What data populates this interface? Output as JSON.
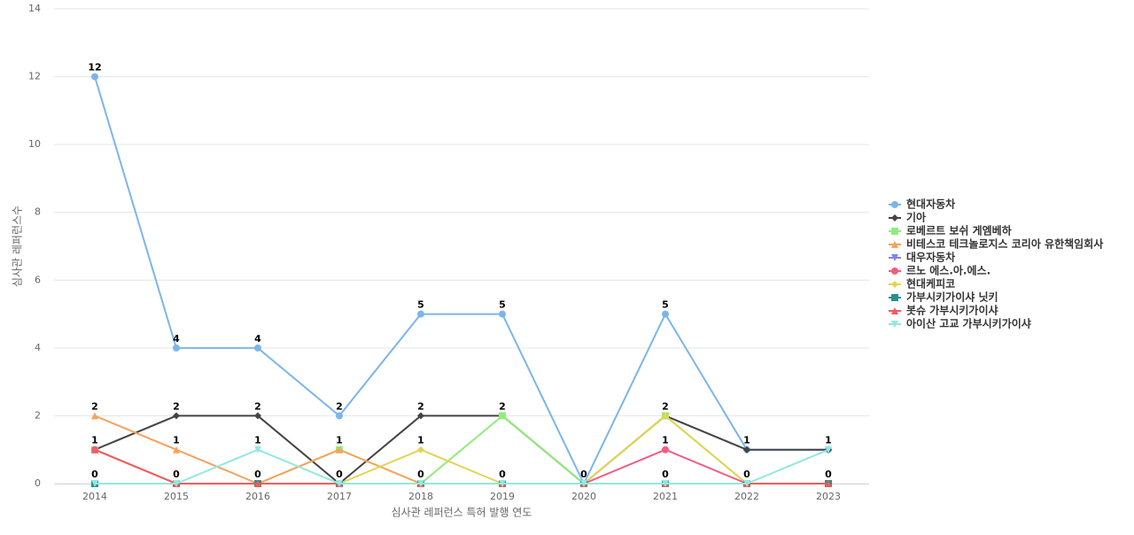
{
  "chart_data": {
    "type": "line",
    "x_label": "심사관 레퍼런스 특허 발행 연도",
    "y_label": "심사관 레퍼런스수",
    "categories": [
      "2014",
      "2015",
      "2016",
      "2017",
      "2018",
      "2019",
      "2020",
      "2021",
      "2022",
      "2023"
    ],
    "ylim": [
      0,
      14
    ],
    "yticks": [
      0,
      2,
      4,
      6,
      8,
      10,
      12,
      14
    ],
    "grid": true,
    "legend": "right",
    "series": [
      {
        "name": "현대자동차",
        "color": "#7cb5ec",
        "marker": "circle",
        "values": [
          12,
          4,
          4,
          2,
          5,
          5,
          0,
          5,
          1,
          1
        ]
      },
      {
        "name": "기아",
        "color": "#434348",
        "marker": "diamond",
        "values": [
          1,
          2,
          2,
          0,
          2,
          2,
          0,
          2,
          1,
          1
        ]
      },
      {
        "name": "로베르트 보쉬 게엠베하",
        "color": "#90ed7d",
        "marker": "square",
        "values": [
          1,
          0,
          0,
          1,
          0,
          2,
          0,
          2,
          0,
          0
        ]
      },
      {
        "name": "비테스코 테크놀로지스 코리아 유한책임회사",
        "color": "#f7a35c",
        "marker": "triangle",
        "values": [
          2,
          1,
          0,
          1,
          0,
          0,
          0,
          0,
          0,
          0
        ]
      },
      {
        "name": "대우자동차",
        "color": "#8085e9",
        "marker": "triangle-down",
        "values": [
          0,
          0,
          0,
          0,
          0,
          0,
          0,
          0,
          0,
          0
        ]
      },
      {
        "name": "르노 에스.아.에스.",
        "color": "#f15c80",
        "marker": "circle",
        "values": [
          1,
          0,
          0,
          0,
          0,
          0,
          0,
          1,
          0,
          0
        ]
      },
      {
        "name": "현대케피코",
        "color": "#e4d354",
        "marker": "diamond",
        "values": [
          0,
          0,
          0,
          0,
          1,
          0,
          0,
          2,
          0,
          0
        ]
      },
      {
        "name": "가부시키가이샤 닛키",
        "color": "#2b908f",
        "marker": "square",
        "values": [
          0,
          0,
          0,
          0,
          0,
          0,
          0,
          0,
          0,
          0
        ]
      },
      {
        "name": "봇슈 가부시키가이샤",
        "color": "#f45b5b",
        "marker": "triangle",
        "values": [
          1,
          0,
          0,
          0,
          0,
          0,
          0,
          0,
          0,
          0
        ]
      },
      {
        "name": "아이산 고교 가부시키가이샤",
        "color": "#91e8e1",
        "marker": "triangle-down",
        "values": [
          0,
          0,
          1,
          0,
          0,
          0,
          0,
          0,
          0,
          1
        ]
      }
    ]
  }
}
